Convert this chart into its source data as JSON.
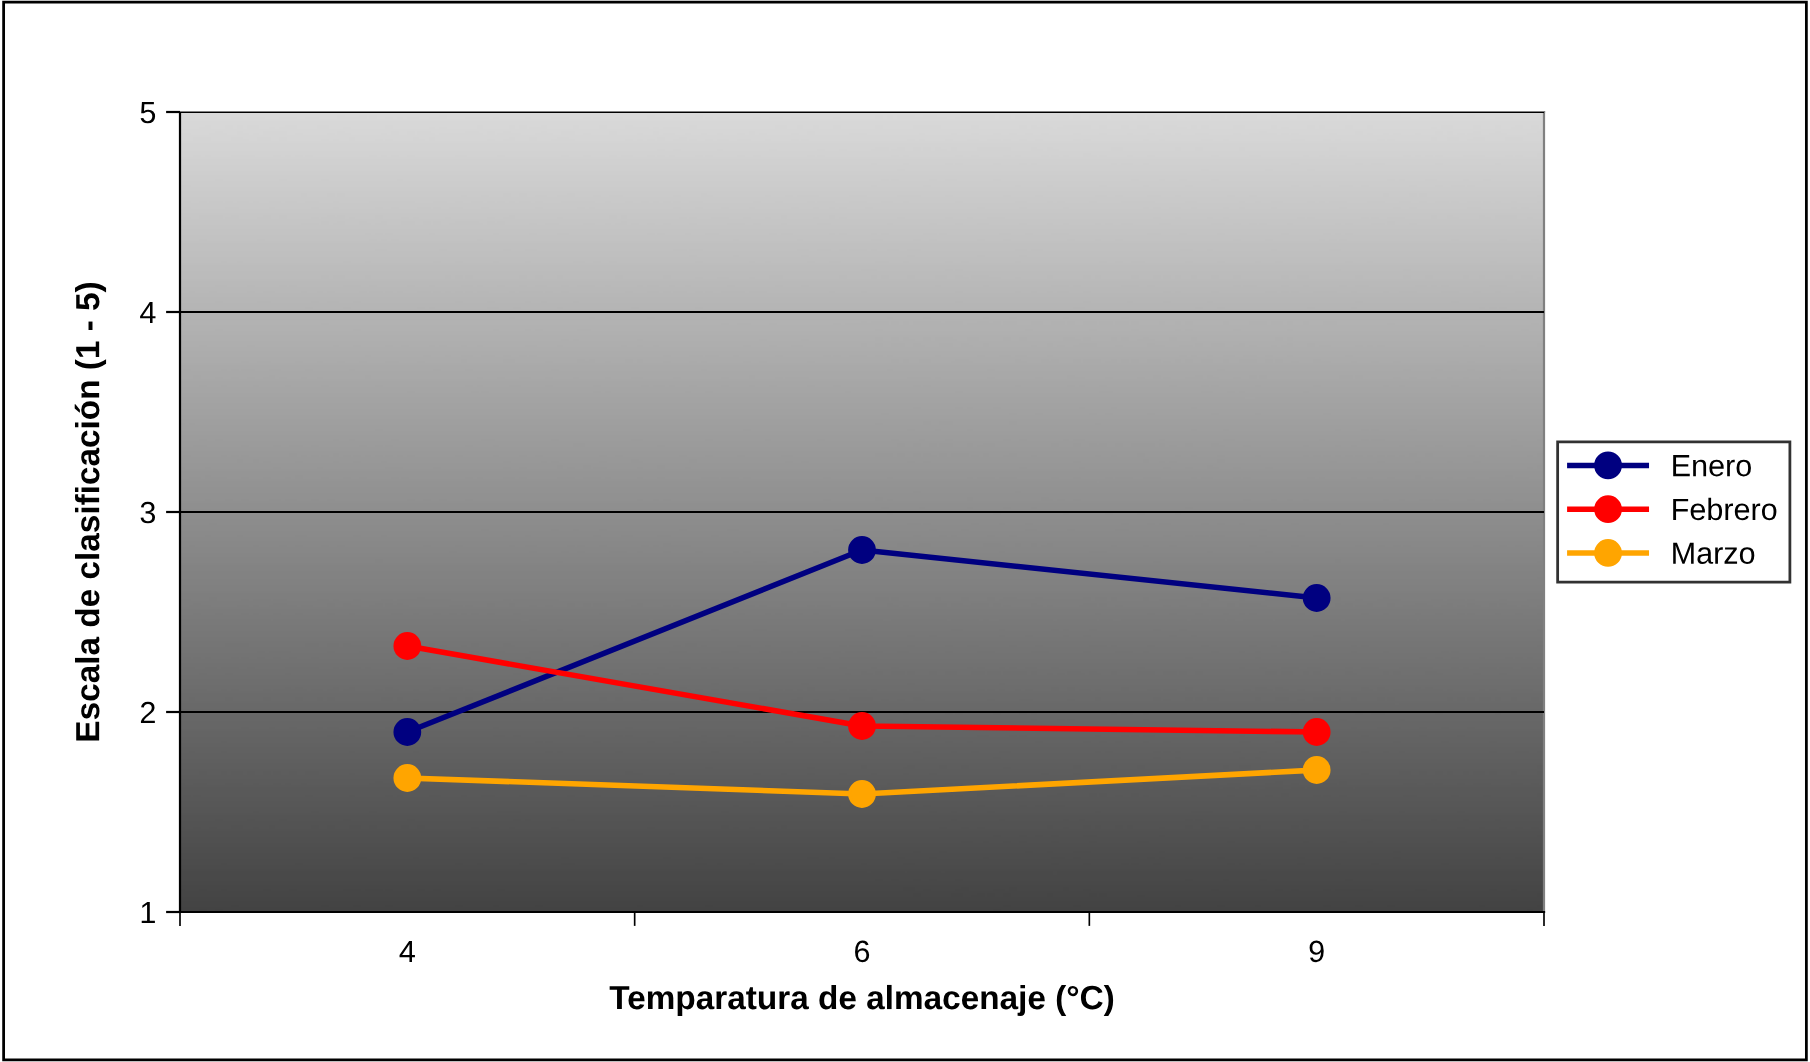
{
  "chart_data": {
    "type": "line",
    "xlabel": "Temparatura de almacenaje (°C)",
    "ylabel": "Escala de clasificación (1 - 5)",
    "categories": [
      "4",
      "6",
      "9"
    ],
    "series": [
      {
        "name": "Enero",
        "color": "#000080",
        "values": [
          1.9,
          2.81,
          2.57
        ]
      },
      {
        "name": "Febrero",
        "color": "#ff0000",
        "values": [
          2.33,
          1.93,
          1.9
        ]
      },
      {
        "name": "Marzo",
        "color": "#ffa500",
        "values": [
          1.67,
          1.59,
          1.71
        ]
      }
    ],
    "ylim": [
      1,
      5
    ],
    "yticks": [
      1,
      2,
      3,
      4,
      5
    ],
    "grid": "y",
    "legend": "right",
    "marker": "circle",
    "line_style": "solid"
  }
}
